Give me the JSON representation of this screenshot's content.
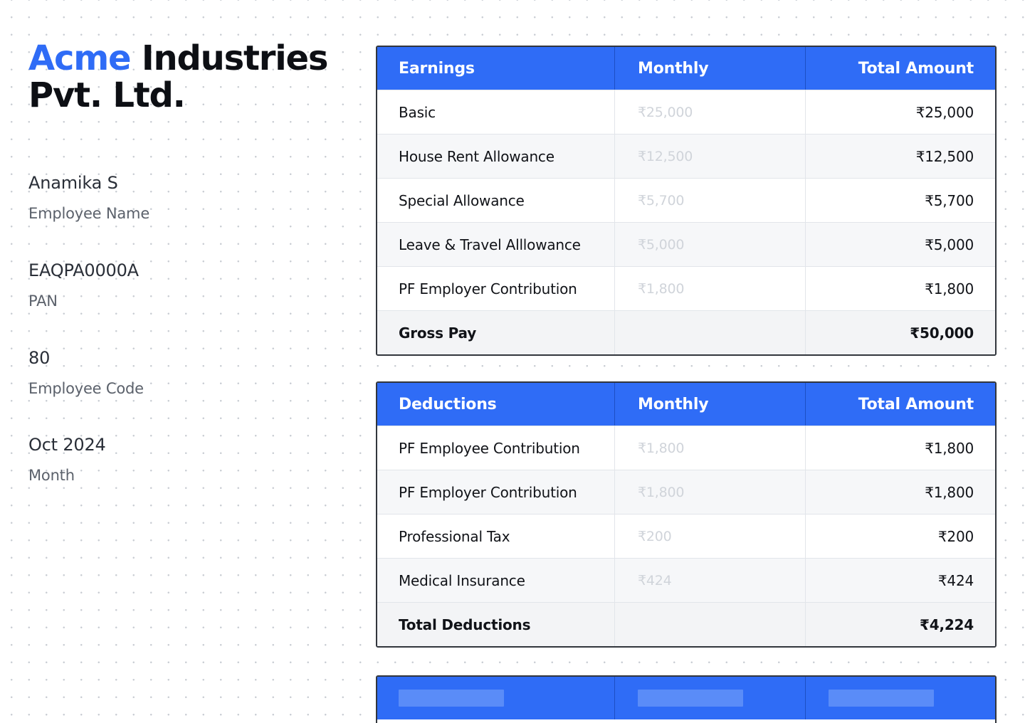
{
  "company": {
    "brand": "Acme",
    "rest_line1": "Industries",
    "line2": "Pvt. Ltd."
  },
  "employee": [
    {
      "value": "Anamika S",
      "label": "Employee Name"
    },
    {
      "value": "EAQPA0000A",
      "label": "PAN"
    },
    {
      "value": "80",
      "label": "Employee Code"
    },
    {
      "value": "Oct 2024",
      "label": "Month"
    }
  ],
  "earnings": {
    "headers": [
      "Earnings",
      "Monthly",
      "Total Amount"
    ],
    "rows": [
      {
        "name": "Basic",
        "monthly": "₹25,000",
        "total": "₹25,000"
      },
      {
        "name": "House Rent Allowance",
        "monthly": "₹12,500",
        "total": "₹12,500"
      },
      {
        "name": "Special Allowance",
        "monthly": "₹5,700",
        "total": "₹5,700"
      },
      {
        "name": "Leave & Travel Alllowance",
        "monthly": "₹5,000",
        "total": "₹5,000"
      },
      {
        "name": "PF Employer Contribution",
        "monthly": "₹1,800",
        "total": "₹1,800"
      }
    ],
    "total": {
      "name": "Gross Pay",
      "monthly": "",
      "total": "₹50,000"
    }
  },
  "deductions": {
    "headers": [
      "Deductions",
      "Monthly",
      "Total Amount"
    ],
    "rows": [
      {
        "name": "PF Employee Contribution",
        "monthly": "₹1,800",
        "total": "₹1,800"
      },
      {
        "name": "PF Employer Contribution",
        "monthly": "₹1,800",
        "total": "₹1,800"
      },
      {
        "name": "Professional Tax",
        "monthly": "₹200",
        "total": "₹200"
      },
      {
        "name": "Medical Insurance",
        "monthly": "₹424",
        "total": "₹424"
      }
    ],
    "total": {
      "name": "Total Deductions",
      "monthly": "",
      "total": "₹4,224"
    }
  },
  "colors": {
    "accent": "#2f6cf6",
    "border": "#32363d",
    "muted_value": "#d0d4da"
  }
}
